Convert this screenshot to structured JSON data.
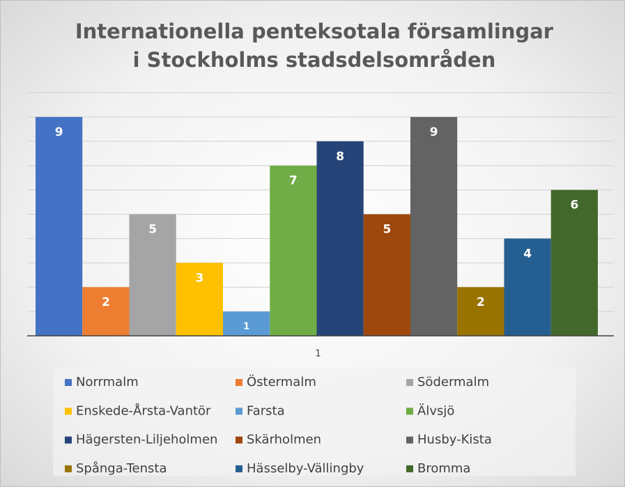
{
  "chart_data": {
    "type": "bar",
    "title": "Internationella penteksotala församlingar i Stockholms stadsdelsområden",
    "categories": [
      "1"
    ],
    "series": [
      {
        "name": "Norrmalm",
        "color": "#4472c4",
        "values": [
          9
        ]
      },
      {
        "name": "Östermalm",
        "color": "#ed7d31",
        "values": [
          2
        ]
      },
      {
        "name": "Södermalm",
        "color": "#a5a5a5",
        "values": [
          5
        ]
      },
      {
        "name": "Enskede-Årsta-Vantör",
        "color": "#ffc000",
        "values": [
          3
        ]
      },
      {
        "name": "Farsta",
        "color": "#5b9bd5",
        "values": [
          1
        ]
      },
      {
        "name": "Älvsjö",
        "color": "#70ad47",
        "values": [
          7
        ]
      },
      {
        "name": "Hägersten-Liljeholmen",
        "color": "#264478",
        "values": [
          8
        ]
      },
      {
        "name": "Skärholmen",
        "color": "#9e480e",
        "values": [
          5
        ]
      },
      {
        "name": "Husby-Kista",
        "color": "#636363",
        "values": [
          9
        ]
      },
      {
        "name": "Spånga-Tensta",
        "color": "#997300",
        "values": [
          2
        ]
      },
      {
        "name": "Hässelby-Vällingby",
        "color": "#255e91",
        "values": [
          4
        ]
      },
      {
        "name": "Bromma",
        "color": "#43682b",
        "values": [
          6
        ]
      }
    ],
    "ylim": [
      0,
      10
    ],
    "yticks": [
      0,
      1,
      2,
      3,
      4,
      5,
      6,
      7,
      8,
      9,
      10
    ],
    "grid": true
  }
}
